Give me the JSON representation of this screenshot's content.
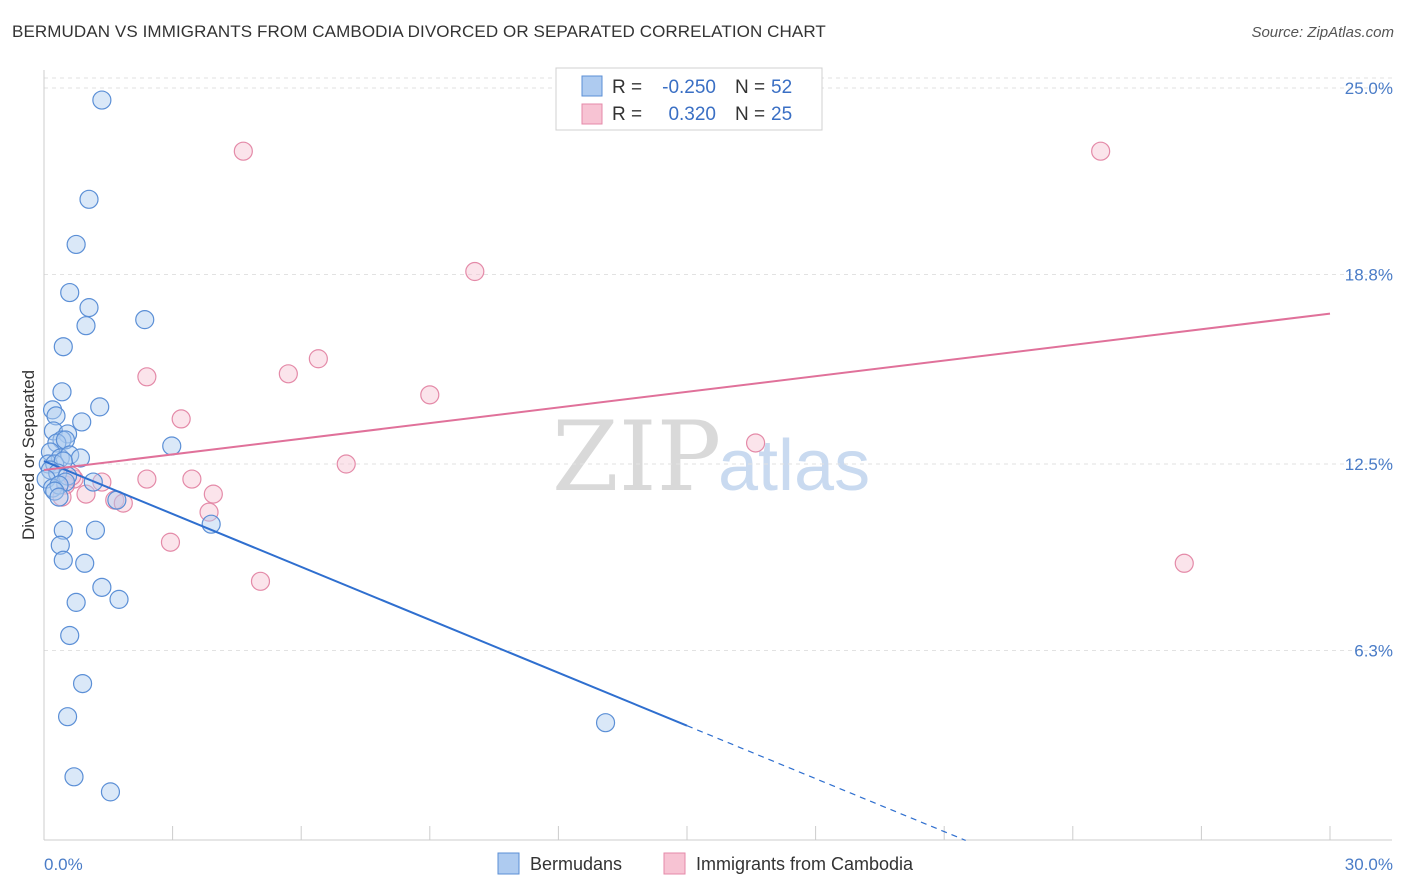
{
  "title": "BERMUDAN VS IMMIGRANTS FROM CAMBODIA DIVORCED OR SEPARATED CORRELATION CHART",
  "source": "Source: ZipAtlas.com",
  "watermark": {
    "zip": "ZIP",
    "atlas": "atlas"
  },
  "colors": {
    "blue_fill": "#aecbf0",
    "blue_stroke": "#5b8fd6",
    "blue_line": "#2f6fcf",
    "pink_fill": "#f7c3d3",
    "pink_stroke": "#e48aa8",
    "pink_line": "#e0719a"
  },
  "legend": {
    "rows": [
      {
        "r_label": "R =",
        "r_value": "-0.250",
        "n_label": "N =",
        "n_value": "52"
      },
      {
        "r_label": "R =",
        "r_value": "0.320",
        "n_label": "N =",
        "n_value": "25"
      }
    ]
  },
  "bottom_legend": [
    "Bermudans",
    "Immigrants from Cambodia"
  ],
  "chart_data": {
    "type": "scatter",
    "ylabel": "Divorced or Separated",
    "x_tick_labels": [
      "0.0%",
      "30.0%"
    ],
    "y_tick_labels": [
      "25.0%",
      "18.8%",
      "12.5%",
      "6.3%"
    ],
    "y_ticks": [
      25.0,
      18.8,
      12.5,
      6.3
    ],
    "xlim": [
      0,
      30
    ],
    "ylim": [
      0,
      25.6
    ],
    "grid": true,
    "legend_position": "top-center",
    "series": [
      {
        "name": "Bermudans",
        "points": [
          [
            1.35,
            24.6
          ],
          [
            1.05,
            21.3
          ],
          [
            0.75,
            19.8
          ],
          [
            0.6,
            18.2
          ],
          [
            1.05,
            17.7
          ],
          [
            0.98,
            17.1
          ],
          [
            2.35,
            17.3
          ],
          [
            0.45,
            16.4
          ],
          [
            0.42,
            14.9
          ],
          [
            1.3,
            14.4
          ],
          [
            0.2,
            14.3
          ],
          [
            0.28,
            14.1
          ],
          [
            0.88,
            13.9
          ],
          [
            0.22,
            13.6
          ],
          [
            0.55,
            13.5
          ],
          [
            0.42,
            13.3
          ],
          [
            0.3,
            13.2
          ],
          [
            0.5,
            13.3
          ],
          [
            2.98,
            13.1
          ],
          [
            0.15,
            12.9
          ],
          [
            0.38,
            12.7
          ],
          [
            0.6,
            12.8
          ],
          [
            0.85,
            12.7
          ],
          [
            0.1,
            12.5
          ],
          [
            0.25,
            12.5
          ],
          [
            0.45,
            12.6
          ],
          [
            0.15,
            12.3
          ],
          [
            0.32,
            12.2
          ],
          [
            0.55,
            12.1
          ],
          [
            0.05,
            12.0
          ],
          [
            0.5,
            11.9
          ],
          [
            1.15,
            11.9
          ],
          [
            0.2,
            11.7
          ],
          [
            0.35,
            11.8
          ],
          [
            0.25,
            11.6
          ],
          [
            0.35,
            11.4
          ],
          [
            1.7,
            11.3
          ],
          [
            3.9,
            10.5
          ],
          [
            0.45,
            10.3
          ],
          [
            1.2,
            10.3
          ],
          [
            0.38,
            9.8
          ],
          [
            0.45,
            9.3
          ],
          [
            0.95,
            9.2
          ],
          [
            1.35,
            8.4
          ],
          [
            1.75,
            8.0
          ],
          [
            0.75,
            7.9
          ],
          [
            0.6,
            6.8
          ],
          [
            0.9,
            5.2
          ],
          [
            0.55,
            4.1
          ],
          [
            13.1,
            3.9
          ],
          [
            0.7,
            2.1
          ],
          [
            1.55,
            1.6
          ]
        ]
      },
      {
        "name": "Immigrants from Cambodia",
        "points": [
          [
            4.65,
            22.9
          ],
          [
            24.65,
            22.9
          ],
          [
            10.05,
            18.9
          ],
          [
            6.4,
            16.0
          ],
          [
            5.7,
            15.5
          ],
          [
            2.4,
            15.4
          ],
          [
            9.0,
            14.8
          ],
          [
            3.2,
            14.0
          ],
          [
            16.6,
            13.2
          ],
          [
            7.05,
            12.5
          ],
          [
            0.7,
            12.0
          ],
          [
            2.4,
            12.0
          ],
          [
            3.45,
            12.0
          ],
          [
            1.35,
            11.9
          ],
          [
            0.5,
            11.8
          ],
          [
            0.98,
            11.5
          ],
          [
            0.42,
            11.4
          ],
          [
            3.95,
            11.5
          ],
          [
            1.65,
            11.3
          ],
          [
            1.85,
            11.2
          ],
          [
            3.85,
            10.9
          ],
          [
            2.95,
            9.9
          ],
          [
            5.05,
            8.6
          ],
          [
            26.6,
            9.2
          ],
          [
            0.65,
            12.1
          ]
        ]
      }
    ],
    "trend_lines": [
      {
        "series": "Bermudans",
        "x0": 0,
        "y0": 12.6,
        "x1": 15.0,
        "y1": 3.8,
        "dashed_to_x": 21.5
      },
      {
        "series": "Immigrants from Cambodia",
        "x0": 0,
        "y0": 12.3,
        "x1": 30,
        "y1": 17.5
      }
    ]
  }
}
